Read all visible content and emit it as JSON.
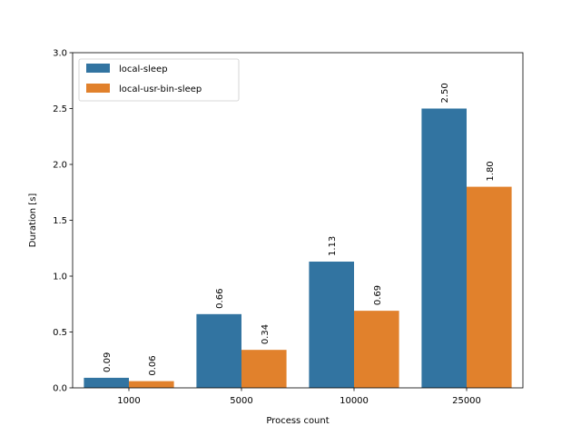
{
  "chart_data": {
    "type": "bar",
    "categories": [
      "1000",
      "5000",
      "10000",
      "25000"
    ],
    "series": [
      {
        "name": "local-sleep",
        "color": "#3274a1",
        "values": [
          0.09,
          0.66,
          1.13,
          2.5
        ],
        "labels": [
          "0.09",
          "0.66",
          "1.13",
          "2.50"
        ]
      },
      {
        "name": "local-usr-bin-sleep",
        "color": "#e1812c",
        "values": [
          0.06,
          0.34,
          0.69,
          1.8
        ],
        "labels": [
          "0.06",
          "0.34",
          "0.69",
          "1.80"
        ]
      }
    ],
    "title": "",
    "xlabel": "Process count",
    "ylabel": "Duration [s]",
    "ylim": [
      0,
      3.0
    ],
    "yticks": [
      "0.0",
      "0.5",
      "1.0",
      "1.5",
      "2.0",
      "2.5",
      "3.0"
    ],
    "legend_position": "top-left",
    "grid": false
  }
}
